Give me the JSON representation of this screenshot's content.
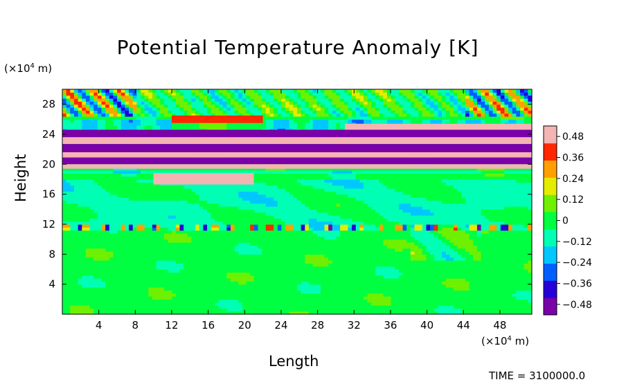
{
  "chart_data": {
    "type": "heatmap",
    "title": "Potential Temperature Anomaly [K]",
    "xlabel": "Length",
    "ylabel": "Height",
    "x_unit": "(×10",
    "x_unit_exp": "4",
    "x_unit_tail": " m)",
    "y_unit": "(×10",
    "y_unit_exp": "4",
    "y_unit_tail": " m)",
    "xlim": [
      0,
      51.5
    ],
    "ylim": [
      0,
      30
    ],
    "x_ticks": [
      4,
      8,
      12,
      16,
      20,
      24,
      28,
      32,
      36,
      40,
      44,
      48
    ],
    "y_ticks": [
      4,
      8,
      12,
      16,
      20,
      24,
      28
    ],
    "colorbar": {
      "min": -0.54,
      "max": 0.54,
      "ticks": [
        0.48,
        0.36,
        0.24,
        0.12,
        0,
        -0.12,
        -0.24,
        -0.36,
        -0.48
      ],
      "tick_labels": [
        "0.48",
        "0.36",
        "0.24",
        "0.12",
        "0",
        "−0.12",
        "−0.24",
        "−0.36",
        "−0.48"
      ],
      "colors": [
        "#7a00a8",
        "#2600d8",
        "#0060ff",
        "#00c8ff",
        "#00ffb4",
        "#00ff40",
        "#6ef000",
        "#e6ec00",
        "#ffa000",
        "#ff2800",
        "#f4b4b4"
      ]
    },
    "bands": [
      {
        "y": [
          25.5,
          26.5
        ],
        "x": [
          12,
          22
        ],
        "value": 0.42
      },
      {
        "y": [
          24.6,
          25.4
        ],
        "x": [
          31,
          51.5
        ],
        "value": 0.5
      },
      {
        "y": [
          23.6,
          24.6
        ],
        "x": [
          0,
          51.5
        ],
        "value": -0.5
      },
      {
        "y": [
          22.7,
          23.6
        ],
        "x": [
          0,
          51.5
        ],
        "value": 0.55
      },
      {
        "y": [
          21.6,
          22.7
        ],
        "x": [
          0,
          51.5
        ],
        "value": -0.55
      },
      {
        "y": [
          20.9,
          21.6
        ],
        "x": [
          0,
          51.5
        ],
        "value": 0.55
      },
      {
        "y": [
          20.0,
          20.9
        ],
        "x": [
          0,
          51.5
        ],
        "value": -0.55
      },
      {
        "y": [
          19.4,
          20.0
        ],
        "x": [
          0,
          51.5
        ],
        "value": 0.5
      },
      {
        "y": [
          17.3,
          18.8
        ],
        "x": [
          10,
          21
        ],
        "value": 0.45
      }
    ],
    "time_label": "TIME = 3100000.0"
  }
}
